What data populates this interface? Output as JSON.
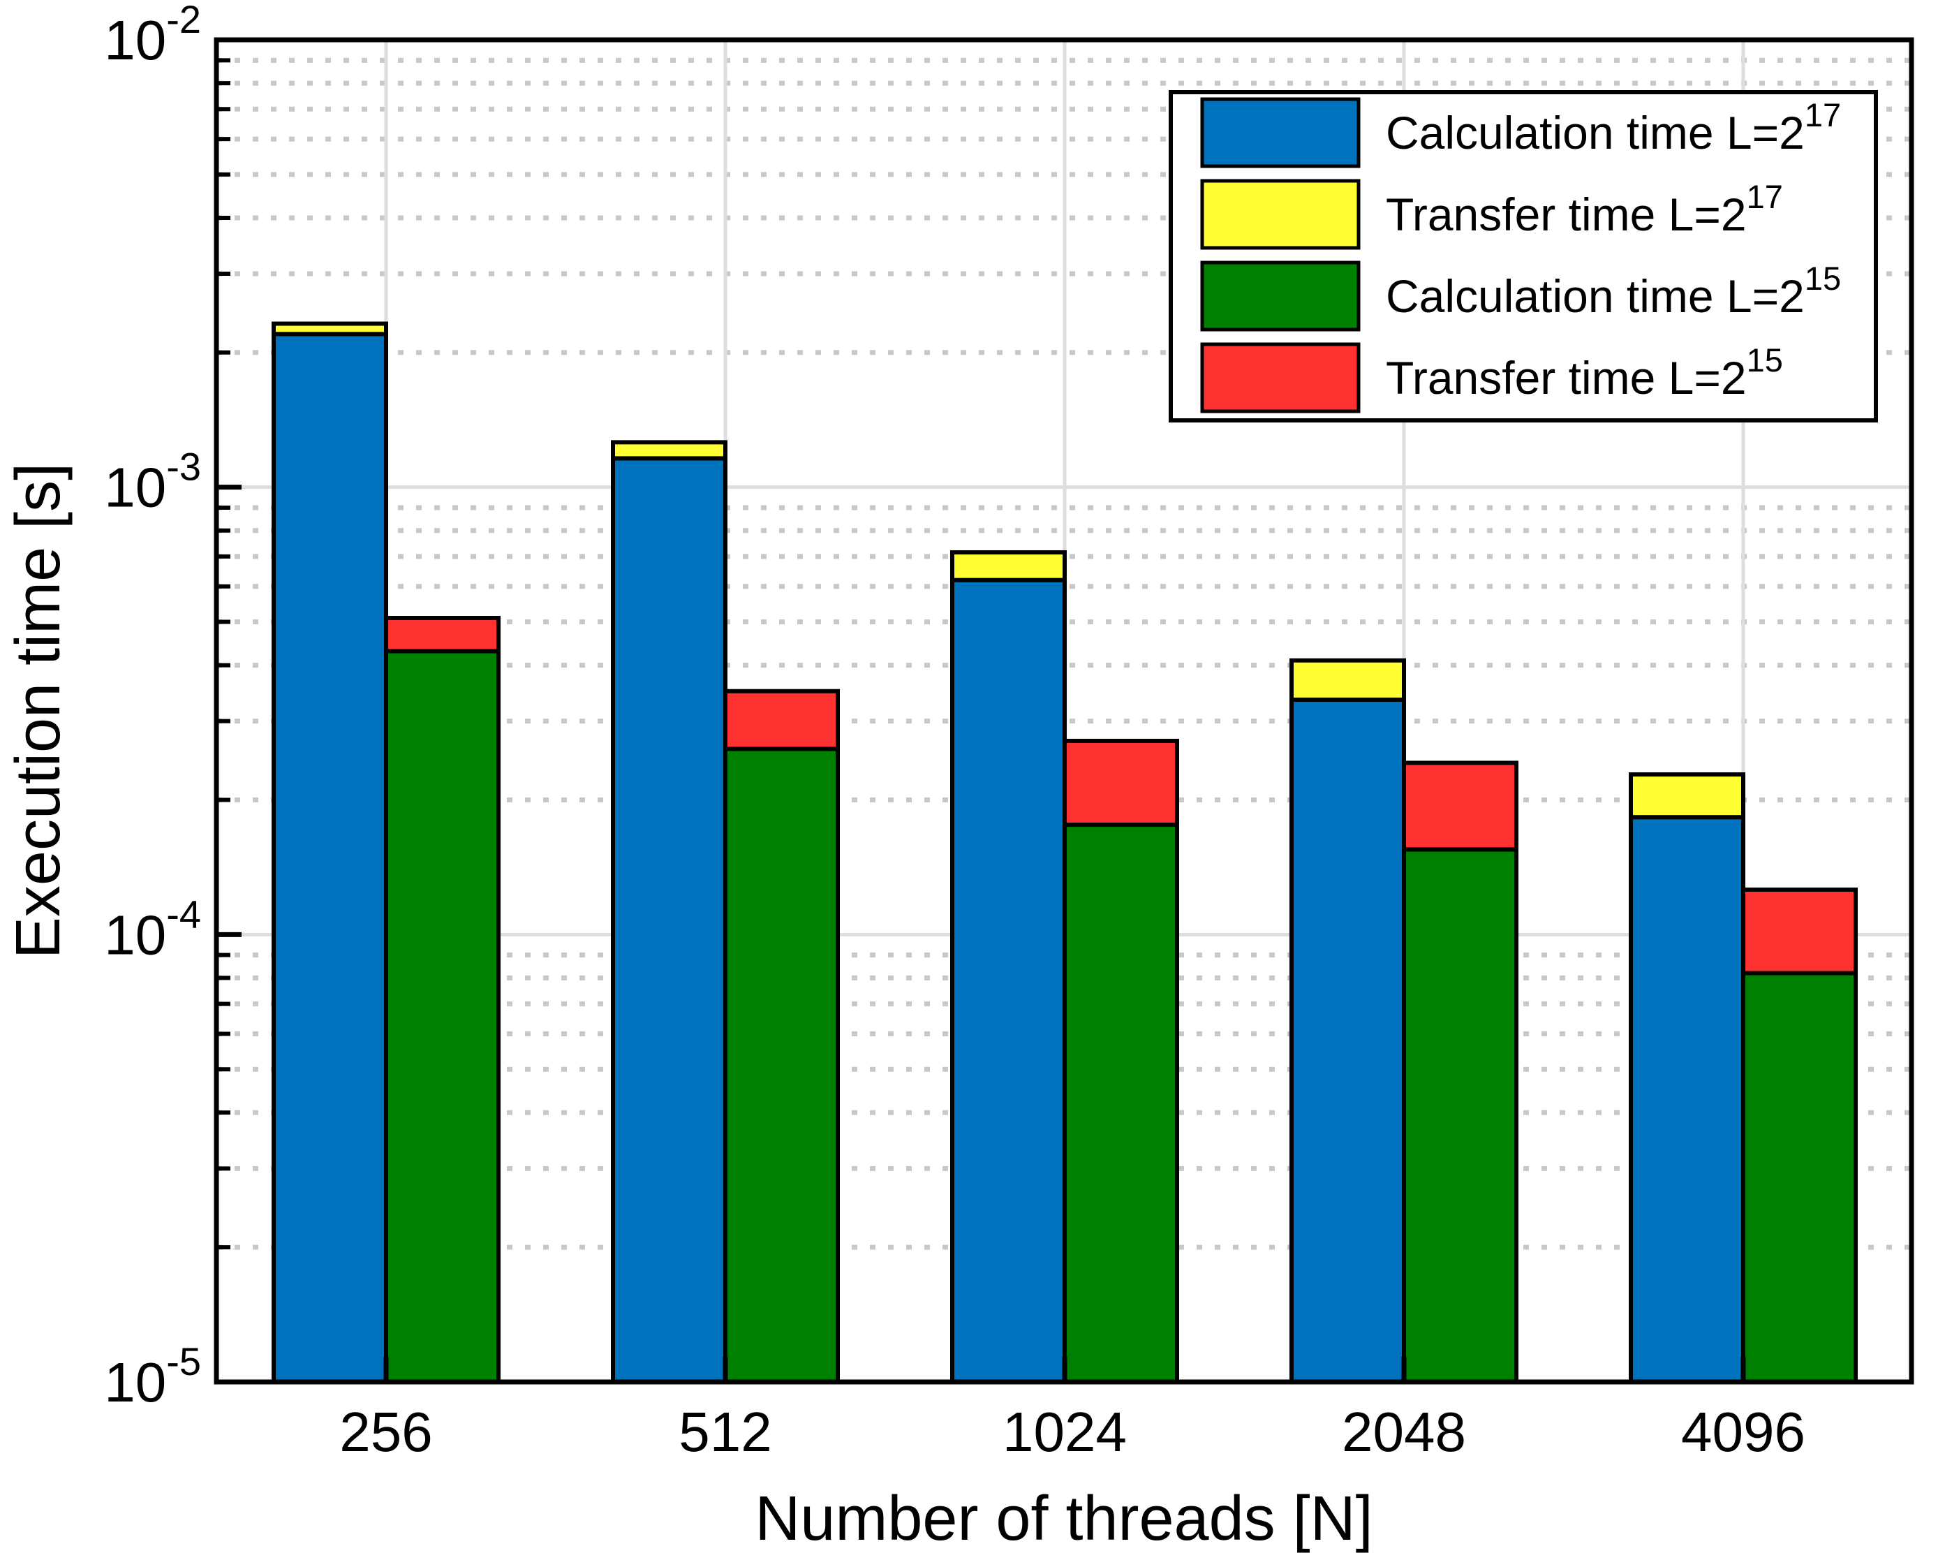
{
  "figure": {
    "background": "#FFFFFF"
  },
  "chart_data": {
    "type": "bar",
    "stacked": true,
    "y_scale": "log",
    "title": "",
    "xlabel": "Number of threads [N]",
    "ylabel": "Execution time [s]",
    "ylim": [
      1e-05,
      0.01
    ],
    "grid": true,
    "minor_grid": true,
    "legend_position": "top-right",
    "categories": [
      "256",
      "512",
      "1024",
      "2048",
      "4096"
    ],
    "y_ticks": [
      {
        "base": "10",
        "exp": "-2"
      },
      {
        "base": "10",
        "exp": "-3"
      },
      {
        "base": "10",
        "exp": "-4"
      },
      {
        "base": "10",
        "exp": "-5"
      }
    ],
    "series": [
      {
        "id": "calc17",
        "name": "Calculation time L=2^17",
        "label_base": "Calculation time L=2",
        "label_exp": "17",
        "stack": "L17",
        "color": "#0072BD",
        "values": [
          0.0022,
          0.00116,
          0.00062,
          0.000335,
          0.000183
        ]
      },
      {
        "id": "transfer17",
        "name": "Transfer time L=2^17",
        "label_base": "Transfer time L=2",
        "label_exp": "17",
        "stack": "L17",
        "color": "#FFFF33",
        "values": [
          0.00012,
          0.0001,
          9.5e-05,
          7.5e-05,
          4.5e-05
        ]
      },
      {
        "id": "calc15",
        "name": "Calculation time L=2^15",
        "label_base": "Calculation time L=2",
        "label_exp": "15",
        "stack": "L15",
        "color": "#008000",
        "values": [
          0.00043,
          0.00026,
          0.000176,
          0.000155,
          8.2e-05
        ]
      },
      {
        "id": "transfer15",
        "name": "Transfer time L=2^15",
        "label_base": "Transfer time L=2",
        "label_exp": "15",
        "stack": "L15",
        "color": "#FF3232",
        "values": [
          8e-05,
          9e-05,
          9.5e-05,
          8.7e-05,
          4.4e-05
        ]
      }
    ],
    "colors": {
      "grid_major": "#DEDEDE",
      "grid_minor": "#C8C8C8",
      "axis": "#000000",
      "bar_border": "#000000",
      "legend_border": "#000000",
      "legend_background": "#FFFFFF"
    }
  }
}
